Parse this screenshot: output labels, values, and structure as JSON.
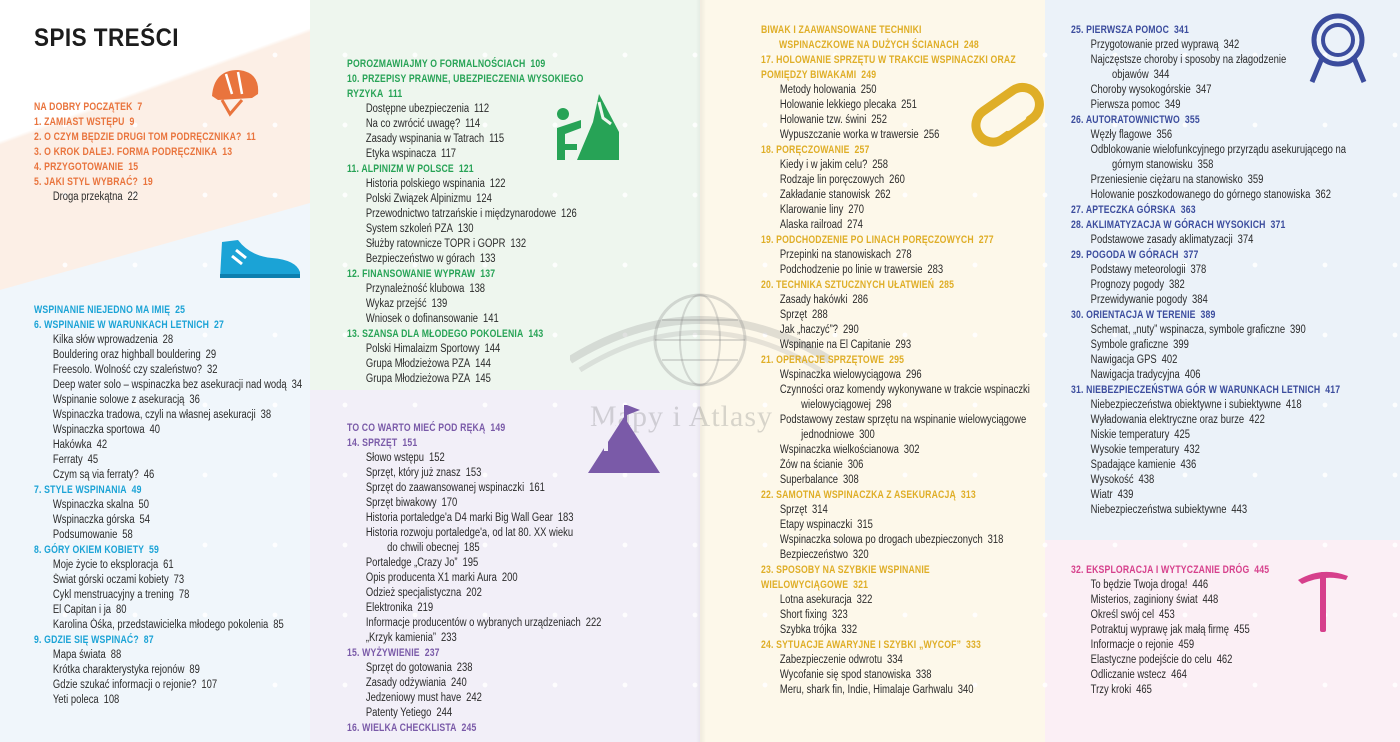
{
  "title": "SPIS TREŚCI",
  "watermark": "Mapy i Atlasy",
  "colors": {
    "orange": "#e9743d",
    "cyan": "#1ba3d6",
    "green": "#27a356",
    "purple": "#7a5aa8",
    "yellow": "#dfae27",
    "navy": "#3b4c9d",
    "pink": "#d6408c"
  },
  "sections": [
    {
      "id": "start",
      "color": "orange",
      "entries": [
        {
          "t": "part",
          "text": "NA DOBRY POCZĄTEK",
          "page": "7"
        },
        {
          "t": "ch",
          "text": "1. ZAMIAST WSTĘPU",
          "page": "9"
        },
        {
          "t": "ch",
          "text": "2. O CZYM BĘDZIE DRUGI TOM PODRĘCZNIKA?",
          "page": "11"
        },
        {
          "t": "ch",
          "text": "3. O KROK DALEJ. FORMA PODRĘCZNIKA",
          "page": "13"
        },
        {
          "t": "ch",
          "text": "4. PRZYGOTOWANIE",
          "page": "15"
        },
        {
          "t": "ch",
          "text": "5. JAKI STYL WYBRAĆ?",
          "page": "19"
        },
        {
          "t": "it",
          "text": "Droga przekątna",
          "page": "22"
        }
      ]
    },
    {
      "id": "wspinanie",
      "color": "cyan",
      "entries": [
        {
          "t": "part",
          "text": "WSPINANIE NIEJEDNO MA IMIĘ",
          "page": "25"
        },
        {
          "t": "ch",
          "text": "6. WSPINANIE W WARUNKACH LETNICH",
          "page": "27"
        },
        {
          "t": "it",
          "text": "Kilka słów wprowadzenia",
          "page": "28"
        },
        {
          "t": "it",
          "text": "Bouldering oraz highball bouldering",
          "page": "29"
        },
        {
          "t": "it",
          "text": "Freesolo. Wolność czy szaleństwo?",
          "page": "32"
        },
        {
          "t": "it",
          "text": "Deep water solo – wspinaczka bez asekuracji nad wodą",
          "page": "34"
        },
        {
          "t": "it",
          "text": "Wspinanie solowe z asekuracją",
          "page": "36"
        },
        {
          "t": "it",
          "text": "Wspinaczka tradowa, czyli na własnej asekuracji",
          "page": "38"
        },
        {
          "t": "it",
          "text": "Wspinaczka sportowa",
          "page": "40"
        },
        {
          "t": "it",
          "text": "Hakówka",
          "page": "42"
        },
        {
          "t": "it",
          "text": "Ferraty",
          "page": "45"
        },
        {
          "t": "it",
          "text": "Czym są via ferraty?",
          "page": "46"
        },
        {
          "t": "ch",
          "text": "7. STYLE WSPINANIA",
          "page": "49"
        },
        {
          "t": "it",
          "text": "Wspinaczka skalna",
          "page": "50"
        },
        {
          "t": "it",
          "text": "Wspinaczka górska",
          "page": "54"
        },
        {
          "t": "it",
          "text": "Podsumowanie",
          "page": "58"
        },
        {
          "t": "ch",
          "text": "8. GÓRY OKIEM KOBIETY",
          "page": "59"
        },
        {
          "t": "it",
          "text": "Moje życie to eksploracja",
          "page": "61"
        },
        {
          "t": "it",
          "text": "Świat górski oczami kobiety",
          "page": "73"
        },
        {
          "t": "it",
          "text": "Cykl menstruacyjny a trening",
          "page": "78"
        },
        {
          "t": "it",
          "text": "El Capitan i ja",
          "page": "80"
        },
        {
          "t": "it",
          "text": "Karolina Óśka, przedstawicielka młodego pokolenia",
          "page": "85"
        },
        {
          "t": "ch",
          "text": "9. GDZIE SIĘ WSPINAĆ?",
          "page": "87"
        },
        {
          "t": "it",
          "text": "Mapa świata",
          "page": "88"
        },
        {
          "t": "it",
          "text": "Krótka charakterystyka rejonów",
          "page": "89"
        },
        {
          "t": "it",
          "text": "Gdzie szukać informacji o rejonie?",
          "page": "107"
        },
        {
          "t": "it",
          "text": "Yeti poleca",
          "page": "108"
        }
      ]
    },
    {
      "id": "formalnosci",
      "color": "green",
      "entries": [
        {
          "t": "part",
          "text": "POROZMAWIAJMY O FORMALNOŚCIACH",
          "page": "109"
        },
        {
          "t": "ch",
          "text": "10. PRZEPISY PRAWNE, UBEZPIECZENIA WYSOKIEGO\nRYZYKA",
          "page": "111"
        },
        {
          "t": "it",
          "text": "Dostępne ubezpieczenia",
          "page": "112"
        },
        {
          "t": "it",
          "text": "Na co zwrócić uwagę?",
          "page": "114"
        },
        {
          "t": "it",
          "text": "Zasady wspinania w Tatrach",
          "page": "115"
        },
        {
          "t": "it",
          "text": "Etyka wspinacza",
          "page": "117"
        },
        {
          "t": "ch",
          "text": "11. ALPINIZM W POLSCE",
          "page": "121"
        },
        {
          "t": "it",
          "text": "Historia polskiego wspinania",
          "page": "122"
        },
        {
          "t": "it",
          "text": "Polski Związek Alpinizmu",
          "page": "124"
        },
        {
          "t": "it",
          "text": "Przewodnictwo tatrzańskie i międzynarodowe",
          "page": "126"
        },
        {
          "t": "it",
          "text": "System szkoleń PZA",
          "page": "130"
        },
        {
          "t": "it",
          "text": "Służby ratownicze TOPR i GOPR",
          "page": "132"
        },
        {
          "t": "it",
          "text": "Bezpieczeństwo w górach",
          "page": "133"
        },
        {
          "t": "ch",
          "text": "12. FINANSOWANIE WYPRAW",
          "page": "137"
        },
        {
          "t": "it",
          "text": "Przynależność klubowa",
          "page": "138"
        },
        {
          "t": "it",
          "text": "Wykaz przejść",
          "page": "139"
        },
        {
          "t": "it",
          "text": "Wniosek o dofinansowanie",
          "page": "141"
        },
        {
          "t": "ch",
          "text": "13. SZANSA DLA MŁODEGO POKOLENIA",
          "page": "143"
        },
        {
          "t": "it",
          "text": "Polski Himalaizm Sportowy",
          "page": "144"
        },
        {
          "t": "it",
          "text": "Grupa Młodzieżowa PZA",
          "page": "144"
        },
        {
          "t": "it",
          "text": "Grupa Młodzieżowa PZA",
          "page": "145"
        }
      ]
    },
    {
      "id": "sprzet",
      "color": "purple",
      "entries": [
        {
          "t": "part",
          "text": "TO CO WARTO MIEĆ POD RĘKĄ",
          "page": "149"
        },
        {
          "t": "ch",
          "text": "14. SPRZĘT",
          "page": "151"
        },
        {
          "t": "it",
          "text": "Słowo wstępu",
          "page": "152"
        },
        {
          "t": "it",
          "text": "Sprzęt, który już znasz",
          "page": "153"
        },
        {
          "t": "it",
          "text": "Sprzęt do zaawansowanej wspinaczki",
          "page": "161"
        },
        {
          "t": "it",
          "text": "Sprzęt biwakowy",
          "page": "170"
        },
        {
          "t": "it",
          "text": "Historia portaledge'a D4 marki Big Wall Gear",
          "page": "183"
        },
        {
          "t": "it",
          "text": "Historia rozwoju portaledge'a, od lat 80. XX wieku\ndo chwili obecnej",
          "page": "185"
        },
        {
          "t": "it",
          "text": "Portaledge „Crazy Jo”",
          "page": "195"
        },
        {
          "t": "it",
          "text": "Opis producenta X1 marki Aura",
          "page": "200"
        },
        {
          "t": "it",
          "text": "Odzież specjalistyczna",
          "page": "202"
        },
        {
          "t": "it",
          "text": "Elektronika",
          "page": "219"
        },
        {
          "t": "it",
          "text": "Informacje producentów o wybranych urządzeniach",
          "page": "222"
        },
        {
          "t": "it",
          "text": "„Krzyk kamienia”",
          "page": "233"
        },
        {
          "t": "ch",
          "text": "15. WYŻYWIENIE",
          "page": "237"
        },
        {
          "t": "it",
          "text": "Sprzęt do gotowania",
          "page": "238"
        },
        {
          "t": "it",
          "text": "Zasady odżywiania",
          "page": "240"
        },
        {
          "t": "it",
          "text": "Jedzeniowy must have",
          "page": "242"
        },
        {
          "t": "it",
          "text": "Patenty Yetiego",
          "page": "244"
        },
        {
          "t": "ch",
          "text": "16. WIELKA CHECKLISTA",
          "page": "245"
        }
      ]
    },
    {
      "id": "biwak",
      "color": "yellow",
      "entries": [
        {
          "t": "part",
          "text": "BIWAK I ZAAWANSOWANE TECHNIKI\nWSPINACZKOWE NA DUŻYCH ŚCIANACH",
          "page": "248",
          "hang": true
        },
        {
          "t": "ch",
          "text": "17. HOLOWANIE SPRZĘTU W TRAKCIE WSPINACZKI ORAZ\nPOMIĘDZY BIWAKAMI",
          "page": "249"
        },
        {
          "t": "it",
          "text": "Metody holowania",
          "page": "250"
        },
        {
          "t": "it",
          "text": "Holowanie lekkiego plecaka",
          "page": "251"
        },
        {
          "t": "it",
          "text": "Holowanie tzw. świni",
          "page": "252"
        },
        {
          "t": "it",
          "text": "Wypuszczanie worka w trawersie",
          "page": "256"
        },
        {
          "t": "ch",
          "text": "18. PORĘCZOWANIE",
          "page": "257"
        },
        {
          "t": "it",
          "text": "Kiedy i w jakim celu?",
          "page": "258"
        },
        {
          "t": "it",
          "text": "Rodzaje lin poręczowych",
          "page": "260"
        },
        {
          "t": "it",
          "text": "Zakładanie stanowisk",
          "page": "262"
        },
        {
          "t": "it",
          "text": "Klarowanie liny",
          "page": "270"
        },
        {
          "t": "it",
          "text": "Alaska railroad",
          "page": "274"
        },
        {
          "t": "ch",
          "text": "19. PODCHODZENIE PO LINACH PORĘCZOWYCH",
          "page": "277"
        },
        {
          "t": "it",
          "text": "Przepinki na stanowiskach",
          "page": "278"
        },
        {
          "t": "it",
          "text": "Podchodzenie po linie w trawersie",
          "page": "283"
        },
        {
          "t": "ch",
          "text": "20. TECHNIKA SZTUCZNYCH UŁATWIEŃ",
          "page": "285"
        },
        {
          "t": "it",
          "text": "Zasady hakówki",
          "page": "286"
        },
        {
          "t": "it",
          "text": "Sprzęt",
          "page": "288"
        },
        {
          "t": "it",
          "text": "Jak „haczyć”?",
          "page": "290"
        },
        {
          "t": "it",
          "text": "Wspinanie na El Capitanie",
          "page": "293"
        },
        {
          "t": "ch",
          "text": "21. OPERACJE SPRZĘTOWE",
          "page": "295"
        },
        {
          "t": "it",
          "text": "Wspinaczka wielowyciągowa",
          "page": "296"
        },
        {
          "t": "it",
          "text": "Czynności oraz komendy wykonywane w trakcie wspinaczki\nwielowyciągowej",
          "page": "298"
        },
        {
          "t": "it",
          "text": "Podstawowy zestaw sprzętu na wspinanie wielowyciągowe\njednodniowe",
          "page": "300"
        },
        {
          "t": "it",
          "text": "Wspinaczka wielkościanowa",
          "page": "302"
        },
        {
          "t": "it",
          "text": "Żów na ścianie",
          "page": "306"
        },
        {
          "t": "it",
          "text": "Superbalance",
          "page": "308"
        },
        {
          "t": "ch",
          "text": "22. SAMOTNA WSPINACZKA Z ASEKURACJĄ",
          "page": "313"
        },
        {
          "t": "it",
          "text": "Sprzęt",
          "page": "314"
        },
        {
          "t": "it",
          "text": "Etapy wspinaczki",
          "page": "315"
        },
        {
          "t": "it",
          "text": "Wspinaczka solowa po drogach ubezpieczonych",
          "page": "318"
        },
        {
          "t": "it",
          "text": "Bezpieczeństwo",
          "page": "320"
        },
        {
          "t": "ch",
          "text": "23. SPOSOBY NA SZYBKIE WSPINANIE\nWIELOWYCIĄGOWE",
          "page": "321"
        },
        {
          "t": "it",
          "text": "Lotna asekuracja",
          "page": "322"
        },
        {
          "t": "it",
          "text": "Short fixing",
          "page": "323"
        },
        {
          "t": "it",
          "text": "Szybka trójka",
          "page": "332"
        },
        {
          "t": "ch",
          "text": "24. SYTUACJE AWARYJNE I SZYBKI „WYCOF”",
          "page": "333"
        },
        {
          "t": "it",
          "text": "Zabezpieczenie odwrotu",
          "page": "334"
        },
        {
          "t": "it",
          "text": "Wycofanie się spod stanowiska",
          "page": "338"
        },
        {
          "t": "it",
          "text": "Meru, shark fin, Indie, Himalaje Garhwalu",
          "page": "340"
        }
      ]
    },
    {
      "id": "pomoc",
      "color": "navy",
      "entries": [
        {
          "t": "ch",
          "text": "25. PIERWSZA POMOC",
          "page": "341"
        },
        {
          "t": "it",
          "text": "Przygotowanie przed wyprawą",
          "page": "342"
        },
        {
          "t": "it",
          "text": "Najczęstsze choroby i sposoby na złagodzenie\nobjawów",
          "page": "344"
        },
        {
          "t": "it",
          "text": "Choroby wysokogórskie",
          "page": "347"
        },
        {
          "t": "it",
          "text": "Pierwsza pomoc",
          "page": "349"
        },
        {
          "t": "ch",
          "text": "26. AUTORATOWNICTWO",
          "page": "355"
        },
        {
          "t": "it",
          "text": "Węzły flagowe",
          "page": "356"
        },
        {
          "t": "it",
          "text": "Odblokowanie wielofunkcyjnego przyrządu asekurującego na\ngórnym stanowisku",
          "page": "358"
        },
        {
          "t": "it",
          "text": "Przeniesienie ciężaru na stanowisko",
          "page": "359"
        },
        {
          "t": "it",
          "text": "Holowanie poszkodowanego do górnego stanowiska",
          "page": "362"
        },
        {
          "t": "ch",
          "text": "27. APTECZKA GÓRSKA",
          "page": "363"
        },
        {
          "t": "ch",
          "text": "28. AKLIMATYZACJA W GÓRACH WYSOKICH",
          "page": "371"
        },
        {
          "t": "it",
          "text": "Podstawowe zasady aklimatyzacji",
          "page": "374"
        },
        {
          "t": "ch",
          "text": "29. POGODA W GÓRACH",
          "page": "377"
        },
        {
          "t": "it",
          "text": "Podstawy meteorologii",
          "page": "378"
        },
        {
          "t": "it",
          "text": "Prognozy pogody",
          "page": "382"
        },
        {
          "t": "it",
          "text": "Przewidywanie pogody",
          "page": "384"
        },
        {
          "t": "ch",
          "text": "30. ORIENTACJA W TERENIE",
          "page": "389"
        },
        {
          "t": "it",
          "text": "Schemat, „nuty” wspinacza, symbole graficzne",
          "page": "390"
        },
        {
          "t": "it",
          "text": "Symbole graficzne",
          "page": "399"
        },
        {
          "t": "it",
          "text": "Nawigacja GPS",
          "page": "402"
        },
        {
          "t": "it",
          "text": "Nawigacja tradycyjna",
          "page": "406"
        },
        {
          "t": "ch",
          "text": "31. NIEBEZPIECZEŃSTWA GÓR W WARUNKACH LETNICH",
          "page": "417"
        },
        {
          "t": "it",
          "text": "Niebezpieczeństwa obiektywne i subiektywne",
          "page": "418"
        },
        {
          "t": "it",
          "text": "Wyładowania elektryczne oraz burze",
          "page": "422"
        },
        {
          "t": "it",
          "text": "Niskie temperatury",
          "page": "425"
        },
        {
          "t": "it",
          "text": "Wysokie temperatury",
          "page": "432"
        },
        {
          "t": "it",
          "text": "Spadające kamienie",
          "page": "436"
        },
        {
          "t": "it",
          "text": "Wysokość",
          "page": "438"
        },
        {
          "t": "it",
          "text": "Wiatr",
          "page": "439"
        },
        {
          "t": "it",
          "text": "Niebezpieczeństwa subiektywne",
          "page": "443"
        }
      ]
    },
    {
      "id": "eksploracja",
      "color": "pink",
      "entries": [
        {
          "t": "ch",
          "text": "32. EKSPLORACJA I WYTYCZANIE DRÓG",
          "page": "445"
        },
        {
          "t": "it",
          "text": "To będzie Twoja droga!",
          "page": "446"
        },
        {
          "t": "it",
          "text": "Misterios, zaginiony świat",
          "page": "448"
        },
        {
          "t": "it",
          "text": "Określ swój cel",
          "page": "453"
        },
        {
          "t": "it",
          "text": "Potraktuj wyprawę jak małą firmę",
          "page": "455"
        },
        {
          "t": "it",
          "text": "Informacje o rejonie",
          "page": "459"
        },
        {
          "t": "it",
          "text": "Elastyczne podejście do celu",
          "page": "462"
        },
        {
          "t": "it",
          "text": "Odliczanie wstecz",
          "page": "464"
        },
        {
          "t": "it",
          "text": "Trzy kroki",
          "page": "465"
        }
      ]
    }
  ]
}
